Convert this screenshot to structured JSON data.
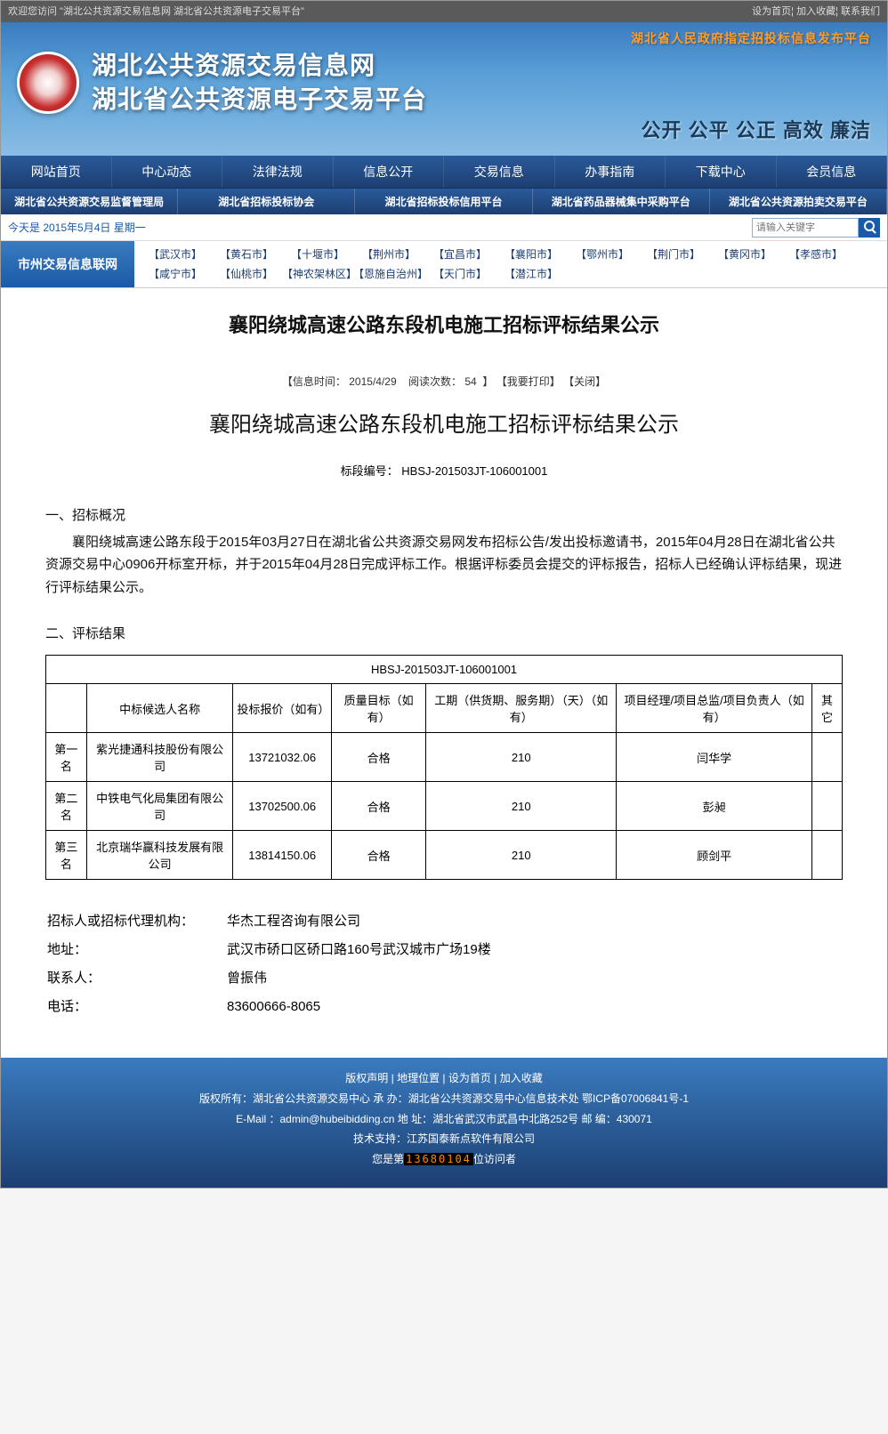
{
  "topbar": {
    "welcome": "欢迎您访问 \"湖北公共资源交易信息网 湖北省公共资源电子交易平台\"",
    "links": [
      "设为首页",
      "加入收藏",
      "联系我们"
    ]
  },
  "banner": {
    "tag": "湖北省人民政府指定招投标信息发布平台",
    "title1": "湖北公共资源交易信息网",
    "title2": "湖北省公共资源电子交易平台",
    "slogan": "公开 公平 公正 高效 廉洁"
  },
  "nav": [
    "网站首页",
    "中心动态",
    "法律法规",
    "信息公开",
    "交易信息",
    "办事指南",
    "下载中心",
    "会员信息"
  ],
  "subnav": [
    "湖北省公共资源交易监督管理局",
    "湖北省招标投标协会",
    "湖北省招标投标信用平台",
    "湖北省药品器械集中采购平台",
    "湖北省公共资源拍卖交易平台"
  ],
  "date_text": "今天是 2015年5月4日 星期一",
  "search_placeholder": "请输入关键字",
  "city_label": "市州交易信息联网",
  "cities": [
    "【武汉市】",
    "【黄石市】",
    "【十堰市】",
    "【荆州市】",
    "【宜昌市】",
    "【襄阳市】",
    "【鄂州市】",
    "【荆门市】",
    "【黄冈市】",
    "【孝感市】",
    "【咸宁市】",
    "【仙桃市】",
    "【神农架林区】",
    "【恩施自治州】",
    "【天门市】",
    "【潜江市】"
  ],
  "page_title": "襄阳绕城高速公路东段机电施工招标评标结果公示",
  "meta": {
    "time_label": "【信息时间：",
    "time": "2015/4/29",
    "reads_label": "阅读次数：",
    "reads": "54",
    "close_bracket": "】",
    "print": "【我要打印】",
    "close": "【关闭】"
  },
  "doc_title": "襄阳绕城高速公路东段机电施工招标评标结果公示",
  "section_code_label": "标段编号：",
  "section_code": "HBSJ-201503JT-106001001",
  "sect1_h": "一、招标概况",
  "sect1_p": "襄阳绕城高速公路东段于2015年03月27日在湖北省公共资源交易网发布招标公告/发出投标邀请书，2015年04月28日在湖北省公共资源交易中心0906开标室开标，并于2015年04月28日完成评标工作。根据评标委员会提交的评标报告，招标人已经确认评标结果，现进行评标结果公示。",
  "sect2_h": "二、评标结果",
  "table": {
    "caption": "HBSJ-201503JT-106001001",
    "headers": [
      "",
      "中标候选人名称",
      "投标报价（如有）",
      "质量目标（如有）",
      "工期（供货期、服务期）（天）（如有）",
      "项目经理/项目总监/项目负责人（如有）",
      "其它"
    ],
    "rows": [
      [
        "第一名",
        "紫光捷通科技股份有限公司",
        "13721032.06",
        "合格",
        "210",
        "闫华学",
        ""
      ],
      [
        "第二名",
        "中铁电气化局集团有限公司",
        "13702500.06",
        "合格",
        "210",
        "彭昶",
        ""
      ],
      [
        "第三名",
        "北京瑞华赢科技发展有限公司",
        "13814150.06",
        "合格",
        "210",
        "顾剑平",
        ""
      ]
    ]
  },
  "info": {
    "org_label": "招标人或招标代理机构：",
    "org": "华杰工程咨询有限公司",
    "addr_label": "地址：",
    "addr": "武汉市硚口区硚口路160号武汉城市广场19楼",
    "contact_label": "联系人：",
    "contact": "曾振伟",
    "tel_label": "电话：",
    "tel": "83600666-8065"
  },
  "footer": {
    "links": [
      "版权声明",
      "地理位置",
      "设为首页",
      "加入收藏"
    ],
    "line1": "版权所有：湖北省公共资源交易中心 承 办：湖北省公共资源交易中心信息技术处 鄂ICP备07006841号-1",
    "line2": "E-Mail ：admin@hubeibidding.cn 地 址：湖北省武汉市武昌中北路252号 邮 编：430071",
    "line3": "技术支持：江苏国泰新点软件有限公司",
    "visitor_prefix": "您是第",
    "visitor_count": "13680104",
    "visitor_suffix": "位访问者"
  }
}
